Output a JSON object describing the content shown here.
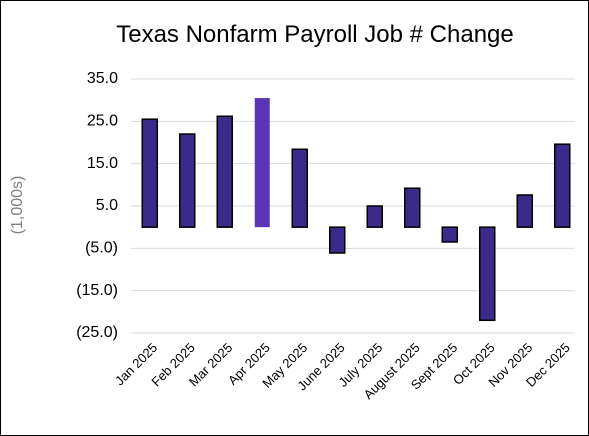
{
  "chart_data": {
    "type": "bar",
    "title": "Texas Nonfarm Payroll Job # Change",
    "ylabel": "(1,000s)",
    "categories": [
      "Jan 2025",
      "Feb 2025",
      "Mar 2025",
      "Apr 2025",
      "May 2025",
      "June 2025",
      "July 2025",
      "August 2025",
      "Sept 2025",
      "Oct 2025",
      "Nov 2025",
      "Dec 2025"
    ],
    "values": [
      25.5,
      22.0,
      26.2,
      30.5,
      18.4,
      -6.1,
      5.0,
      9.2,
      -3.5,
      -22.0,
      7.6,
      19.6
    ],
    "colors": [
      "#3b2a8a",
      "#3b2a8a",
      "#3b2a8a",
      "#5b35b8",
      "#3b2a8a",
      "#3b2a8a",
      "#3b2a8a",
      "#3b2a8a",
      "#3b2a8a",
      "#3b2a8a",
      "#3b2a8a",
      "#3b2a8a"
    ],
    "ylim": [
      -25,
      35
    ],
    "yticks": [
      {
        "value": 35,
        "label": "35.0"
      },
      {
        "value": 25,
        "label": "25.0"
      },
      {
        "value": 15,
        "label": "15.0"
      },
      {
        "value": 5,
        "label": "5.0"
      },
      {
        "value": -5,
        "label": "(5.0)"
      },
      {
        "value": -15,
        "label": "(15.0)"
      },
      {
        "value": -25,
        "label": "(25.0)"
      }
    ],
    "grid": true
  }
}
